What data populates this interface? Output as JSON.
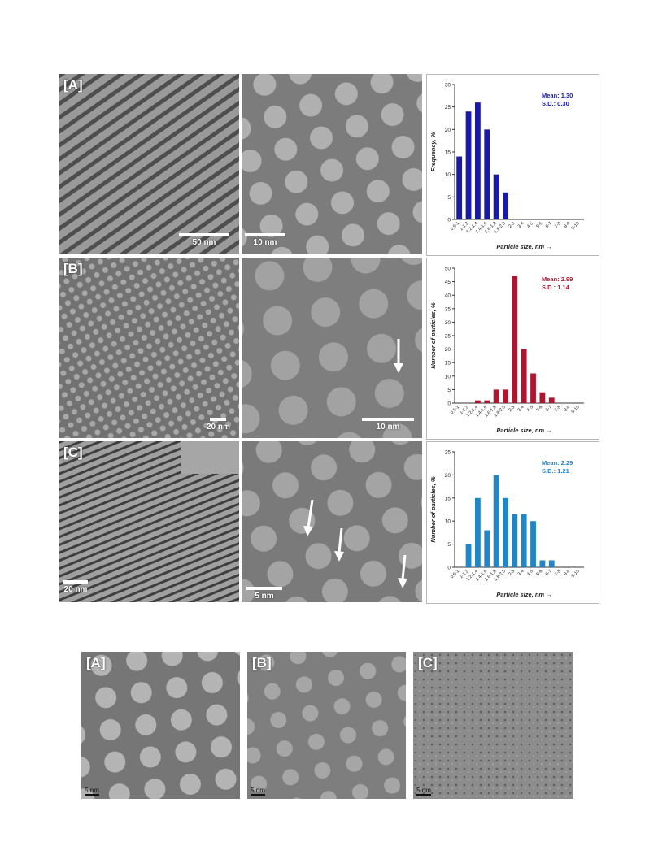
{
  "figure_top": {
    "rows": [
      {
        "label": "[A]",
        "scale_left": "50 nm",
        "scale_mid": "10 nm"
      },
      {
        "label": "[B]",
        "scale_left": "20 nm",
        "scale_mid": "10 nm"
      },
      {
        "label": "[C]",
        "scale_left": "20 nm",
        "scale_mid": "5 nm"
      }
    ]
  },
  "figure_bottom": {
    "panels": [
      {
        "label": "[A]",
        "scale": "5 nm"
      },
      {
        "label": "[B]",
        "scale": "5 nm"
      },
      {
        "label": "[C]",
        "scale": "5 nm"
      }
    ]
  },
  "chart_data": [
    {
      "type": "bar",
      "categories": [
        "0.5-1",
        "1-1.2",
        "1.2-1.4",
        "1.4-1.6",
        "1.6-1.8",
        "1.8-2.0",
        "2-3",
        "3-4",
        "4-5",
        "5-6",
        "6-7",
        "7-8",
        "8-9",
        "9-10"
      ],
      "values": [
        14,
        24,
        26,
        20,
        10,
        6,
        0,
        0,
        0,
        0,
        0,
        0,
        0,
        0
      ],
      "xlabel": "Particle size, nm →",
      "ylabel": "Frequency, %",
      "ylim": [
        0,
        30
      ],
      "yticks": [
        0,
        5,
        10,
        15,
        20,
        25,
        30
      ],
      "color": "#1a1aa8",
      "annotation": [
        "Mean: 1.30",
        "S.D.: 0.30"
      ]
    },
    {
      "type": "bar",
      "categories": [
        "0.5-1",
        "1-1.2",
        "1.2-1.4",
        "1.4-1.6",
        "1.6-1.8",
        "1.8-2.0",
        "2-3",
        "3-4",
        "4-5",
        "5-6",
        "6-7",
        "7-8",
        "8-9",
        "9-10"
      ],
      "values": [
        0,
        0,
        1,
        1,
        5,
        5,
        47,
        20,
        11,
        4,
        2,
        0,
        0,
        0
      ],
      "xlabel": "Particle size, nm →",
      "ylabel": "Number of particles, %",
      "ylim": [
        0,
        50
      ],
      "yticks": [
        0,
        5,
        10,
        15,
        20,
        25,
        30,
        35,
        40,
        45,
        50
      ],
      "color": "#b01530",
      "annotation": [
        "Mean: 2.99",
        "S.D.: 1.14"
      ]
    },
    {
      "type": "bar",
      "categories": [
        "0.5-1",
        "1-1.2",
        "1.2-1.4",
        "1.4-1.6",
        "1.6-1.8",
        "1.8-2.0",
        "2-3",
        "3-4",
        "4-5",
        "5-6",
        "6-7",
        "7-8",
        "8-9",
        "9-10"
      ],
      "values": [
        0,
        5,
        15,
        8,
        20,
        15,
        11.5,
        11.5,
        10,
        1.5,
        1.5,
        0,
        0,
        0
      ],
      "xlabel": "Particle size, nm →",
      "ylabel": "Number of particles, %",
      "ylim": [
        0,
        25
      ],
      "yticks": [
        0,
        5,
        10,
        15,
        20,
        25
      ],
      "color": "#1f86c8",
      "annotation": [
        "Mean: 2.29",
        "S.D.: 1.21"
      ]
    }
  ]
}
